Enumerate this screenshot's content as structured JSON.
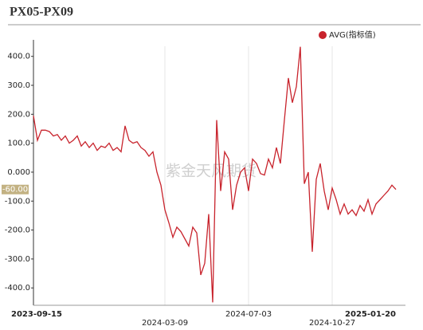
{
  "chart_data": {
    "type": "line",
    "title": "PX05-PX09",
    "watermark": "紫金天风期货",
    "categories": [
      "2023-09-15",
      null,
      null,
      null,
      null,
      null,
      null,
      null,
      null,
      null,
      null,
      null,
      null,
      null,
      null,
      null,
      null,
      null,
      null,
      null,
      null,
      null,
      null,
      null,
      null,
      null,
      null,
      null,
      null,
      null,
      null,
      null,
      null,
      "2024-03-09",
      null,
      null,
      null,
      null,
      null,
      null,
      null,
      null,
      null,
      null,
      null,
      null,
      null,
      null,
      null,
      null,
      null,
      null,
      null,
      null,
      "2024-07-03",
      null,
      null,
      null,
      null,
      null,
      null,
      null,
      null,
      null,
      null,
      null,
      null,
      null,
      null,
      null,
      null,
      null,
      null,
      null,
      null,
      "2024-10-27",
      null,
      null,
      null,
      null,
      null,
      null,
      null,
      null,
      null,
      null,
      null,
      null,
      null,
      null,
      null,
      "2025-01-20"
    ],
    "series": [
      {
        "name": "AVG(指标值)",
        "color": "#c8232c",
        "values": [
          195,
          110,
          145,
          145,
          140,
          125,
          130,
          110,
          125,
          100,
          110,
          125,
          90,
          105,
          85,
          100,
          75,
          90,
          85,
          100,
          75,
          85,
          70,
          160,
          110,
          100,
          105,
          85,
          75,
          55,
          70,
          0,
          -45,
          -130,
          -175,
          -225,
          -190,
          -205,
          -230,
          -255,
          -190,
          -210,
          -355,
          -315,
          -145,
          -450,
          180,
          -65,
          70,
          45,
          -130,
          -45,
          0,
          15,
          -65,
          45,
          30,
          -5,
          -10,
          45,
          15,
          85,
          30,
          180,
          325,
          240,
          295,
          433,
          -40,
          0,
          -275,
          -25,
          30,
          -65,
          -130,
          -55,
          -95,
          -145,
          -110,
          -145,
          -130,
          -150,
          -115,
          -135,
          -95,
          -145,
          -110,
          -95,
          -80,
          -65,
          -45,
          -60
        ]
      }
    ],
    "ylim": [
      -460,
      435
    ],
    "yticks": [
      {
        "value": -400,
        "label": "-400.0"
      },
      {
        "value": -300,
        "label": "-300.0"
      },
      {
        "value": -200,
        "label": "-200.0"
      },
      {
        "value": -100,
        "label": "-100.0"
      },
      {
        "value": 0,
        "label": "0.000"
      },
      {
        "value": 100,
        "label": "100.0"
      },
      {
        "value": 200,
        "label": "200.0"
      },
      {
        "value": 300,
        "label": "300.0"
      },
      {
        "value": 400,
        "label": "400.0"
      }
    ],
    "current_value_label": {
      "value": -60,
      "label": "-60.00"
    },
    "grid": true,
    "legend": "top-right"
  }
}
